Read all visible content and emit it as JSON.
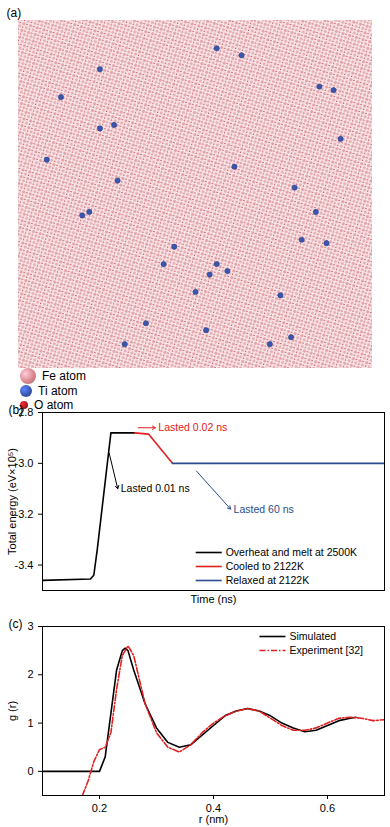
{
  "chart_data": [
    {
      "panel": "(a)",
      "type": "scatter",
      "xlim": [
        0,
        1
      ],
      "ylim": [
        0,
        1
      ],
      "tick_labels": false,
      "series": [
        {
          "name": "Ti atom",
          "color": "#3a56b0",
          "marker": "circle",
          "x": [
            0.56,
            0.63,
            0.23,
            0.85,
            0.89,
            0.12,
            0.27,
            0.23,
            0.91,
            0.08,
            0.61,
            0.28,
            0.78,
            0.2,
            0.18,
            0.84,
            0.8,
            0.87,
            0.44,
            0.41,
            0.56,
            0.59,
            0.54,
            0.5,
            0.74,
            0.36,
            0.53,
            0.3,
            0.71,
            0.77
          ],
          "values": [
            0.92,
            0.9,
            0.86,
            0.81,
            0.8,
            0.78,
            0.7,
            0.69,
            0.66,
            0.6,
            0.58,
            0.54,
            0.52,
            0.45,
            0.44,
            0.45,
            0.37,
            0.36,
            0.35,
            0.3,
            0.3,
            0.28,
            0.27,
            0.22,
            0.21,
            0.13,
            0.11,
            0.07,
            0.07,
            0.09
          ]
        }
      ],
      "legend_items": [
        {
          "name": "Fe atom",
          "color": "#d9868e"
        },
        {
          "name": "Ti atom",
          "color": "#3a56b0"
        },
        {
          "name": "O atom",
          "color": "#a81c22"
        }
      ]
    },
    {
      "panel": "(b)",
      "type": "line",
      "xlabel": "Time (ns)",
      "ylabel": "Total energy (eV×10⁵)",
      "xlim": [
        0,
        1
      ],
      "ylim": [
        -3.5,
        -2.8
      ],
      "yticks": [
        -3.4,
        -3.2,
        {
          "value": -3,
          "label": "-3.0"
        },
        -2.8
      ],
      "tick_labels": "y",
      "legend": "lower right",
      "series": [
        {
          "name": "Overheat and melt at 2500K",
          "color": "#000000",
          "line_style": "solid",
          "x": [
            0,
            0.14,
            0.15,
            0.16,
            0.2,
            0.27
          ],
          "values": [
            -3.46,
            -3.455,
            -3.44,
            -3.34,
            -2.88,
            -2.88
          ]
        },
        {
          "name": "Cooled to 2122K",
          "color": "#e02020",
          "line_style": "solid",
          "x": [
            0.27,
            0.31,
            0.38
          ],
          "values": [
            -2.88,
            -2.885,
            -3.0
          ]
        },
        {
          "name": "Relaxed at 2122K",
          "color": "#2a4d8f",
          "line_style": "solid",
          "x": [
            0.38,
            1
          ],
          "values": [
            -3.0,
            -3.0
          ]
        }
      ],
      "annotations": [
        {
          "text": "Lasted 0.01 ns",
          "color": "#000000",
          "x": 0.22,
          "y": -3.1,
          "arrow_from": [
            0.195,
            -2.96
          ]
        },
        {
          "text": "Lasted 0.02 ns",
          "color": "#e02020",
          "x": 0.33,
          "y": -2.86,
          "arrow_from": [
            0.28,
            -2.86
          ]
        },
        {
          "text": "Lasted 60 ns",
          "color": "#2a4d8f",
          "x": 0.55,
          "y": -3.18,
          "arrow_from": [
            0.45,
            -3.03
          ]
        }
      ]
    },
    {
      "panel": "(c)",
      "type": "line",
      "xlabel": "r (nm)",
      "ylabel": "g (r)",
      "xlim": [
        0.1,
        0.7
      ],
      "xticks": [
        0.2,
        0.4,
        0.6
      ],
      "ylim": [
        -0.5,
        3
      ],
      "yticks": [
        0,
        1,
        2,
        3
      ],
      "legend": "upper right",
      "series": [
        {
          "name": "Simulated",
          "color": "#000000",
          "line_style": "solid",
          "x": [
            0.1,
            0.2,
            0.21,
            0.22,
            0.23,
            0.24,
            0.245,
            0.25,
            0.26,
            0.28,
            0.3,
            0.32,
            0.34,
            0.36,
            0.38,
            0.4,
            0.42,
            0.44,
            0.46,
            0.48,
            0.5,
            0.52,
            0.54,
            0.56,
            0.58,
            0.6,
            0.62,
            0.64,
            0.65
          ],
          "values": [
            0,
            0,
            0.3,
            1.2,
            2.1,
            2.5,
            2.55,
            2.5,
            2.1,
            1.4,
            0.9,
            0.6,
            0.5,
            0.55,
            0.75,
            0.95,
            1.15,
            1.25,
            1.3,
            1.25,
            1.15,
            1.0,
            0.9,
            0.82,
            0.85,
            0.95,
            1.05,
            1.1,
            1.12
          ]
        },
        {
          "name": "Experiment [32]",
          "color": "#e02020",
          "line_style": "dashdot",
          "x": [
            0.17,
            0.18,
            0.19,
            0.2,
            0.21,
            0.22,
            0.23,
            0.24,
            0.25,
            0.26,
            0.27,
            0.28,
            0.3,
            0.32,
            0.34,
            0.36,
            0.38,
            0.4,
            0.42,
            0.44,
            0.46,
            0.48,
            0.5,
            0.52,
            0.54,
            0.56,
            0.58,
            0.6,
            0.62,
            0.64,
            0.66,
            0.68,
            0.7
          ],
          "values": [
            -0.5,
            -0.2,
            0.2,
            0.45,
            0.5,
            0.8,
            1.7,
            2.4,
            2.6,
            2.4,
            1.9,
            1.4,
            0.8,
            0.5,
            0.4,
            0.55,
            0.8,
            1.0,
            1.15,
            1.25,
            1.3,
            1.25,
            1.1,
            0.95,
            0.85,
            0.85,
            0.9,
            1.0,
            1.1,
            1.12,
            1.1,
            1.05,
            1.07
          ]
        }
      ]
    }
  ]
}
